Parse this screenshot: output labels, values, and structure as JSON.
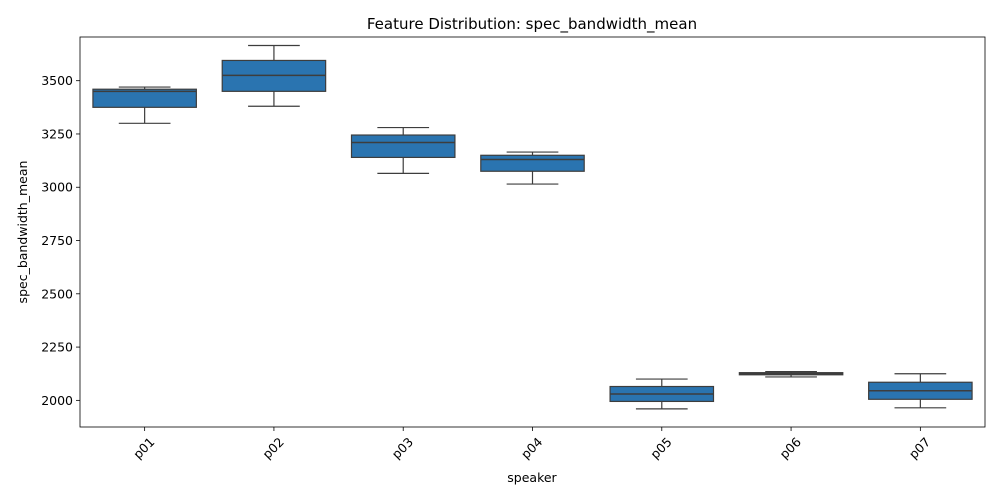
{
  "chart_data": {
    "type": "box",
    "title": "Feature Distribution: spec_bandwidth_mean",
    "xlabel": "speaker",
    "ylabel": "spec_bandwidth_mean",
    "categories": [
      "p01",
      "p02",
      "p03",
      "p04",
      "p05",
      "p06",
      "p07"
    ],
    "boxes": [
      {
        "category": "p01",
        "min": 3300,
        "q1": 3375,
        "median": 3450,
        "q3": 3460,
        "max": 3470
      },
      {
        "category": "p02",
        "min": 3380,
        "q1": 3450,
        "median": 3525,
        "q3": 3595,
        "max": 3665
      },
      {
        "category": "p03",
        "min": 3065,
        "q1": 3140,
        "median": 3210,
        "q3": 3245,
        "max": 3280
      },
      {
        "category": "p04",
        "min": 3015,
        "q1": 3075,
        "median": 3130,
        "q3": 3150,
        "max": 3165
      },
      {
        "category": "p05",
        "min": 1960,
        "q1": 1995,
        "median": 2030,
        "q3": 2065,
        "max": 2100
      },
      {
        "category": "p06",
        "min": 2110,
        "q1": 2120,
        "median": 2125,
        "q3": 2130,
        "max": 2135
      },
      {
        "category": "p07",
        "min": 1965,
        "q1": 2005,
        "median": 2045,
        "q3": 2085,
        "max": 2125
      }
    ],
    "y_ticks": [
      2000,
      2250,
      2500,
      2750,
      3000,
      3250,
      3500
    ],
    "ylim": [
      1875,
      3705
    ],
    "box_color": "#2a74b0",
    "line_color": "#3d3d3d",
    "x_tick_rotation": "45deg",
    "grid": false,
    "legend": false
  }
}
